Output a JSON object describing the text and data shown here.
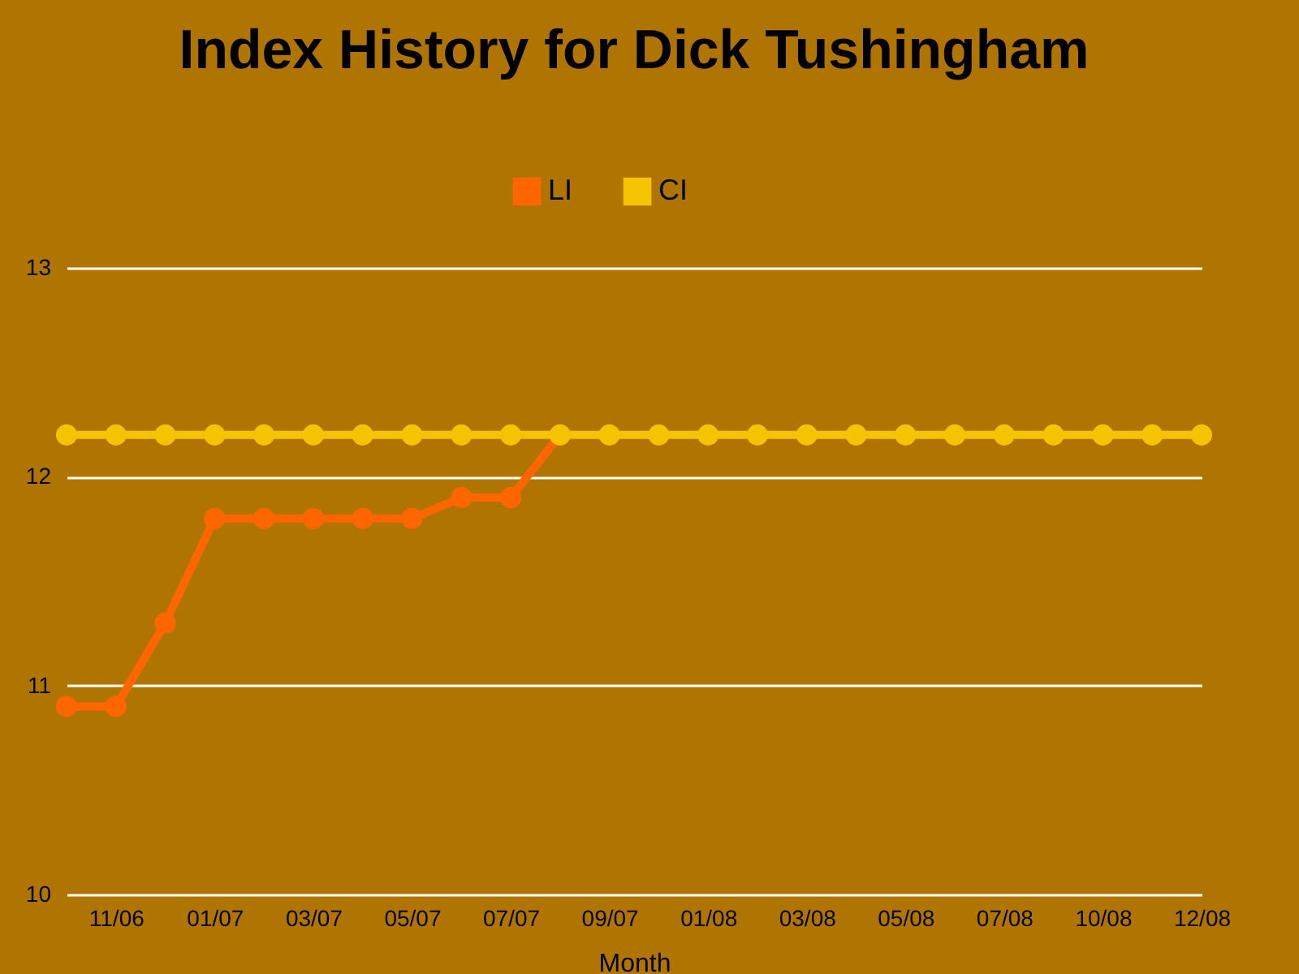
{
  "chart_data": {
    "type": "line",
    "title": "Index History for Dick Tushingham",
    "xlabel": "Month",
    "categories": [
      null,
      "11/06",
      null,
      "01/07",
      null,
      "03/07",
      null,
      "05/07",
      null,
      "07/07",
      null,
      "09/07",
      null,
      "01/08",
      null,
      "03/08",
      null,
      "05/08",
      null,
      "07/08",
      null,
      "10/08",
      null,
      "12/08"
    ],
    "series": [
      {
        "name": "LI",
        "color": "#ff6600",
        "values": [
          10.9,
          10.9,
          11.3,
          11.8,
          11.8,
          11.8,
          11.8,
          11.8,
          11.9,
          11.9,
          12.2,
          null,
          null,
          null,
          null,
          null,
          null,
          null,
          null,
          null,
          null,
          null,
          null,
          null
        ]
      },
      {
        "name": "CI",
        "color": "#f5c400",
        "values": [
          12.2,
          12.2,
          12.2,
          12.2,
          12.2,
          12.2,
          12.2,
          12.2,
          12.2,
          12.2,
          12.2,
          12.2,
          12.2,
          12.2,
          12.2,
          12.2,
          12.2,
          12.2,
          12.2,
          12.2,
          12.2,
          12.2,
          12.2,
          12.2
        ]
      }
    ],
    "ylim": [
      10,
      13
    ],
    "yticks": [
      10,
      11,
      12,
      13
    ],
    "grid": "y",
    "legend": "top",
    "marker": "circle",
    "line_style": "solid"
  }
}
